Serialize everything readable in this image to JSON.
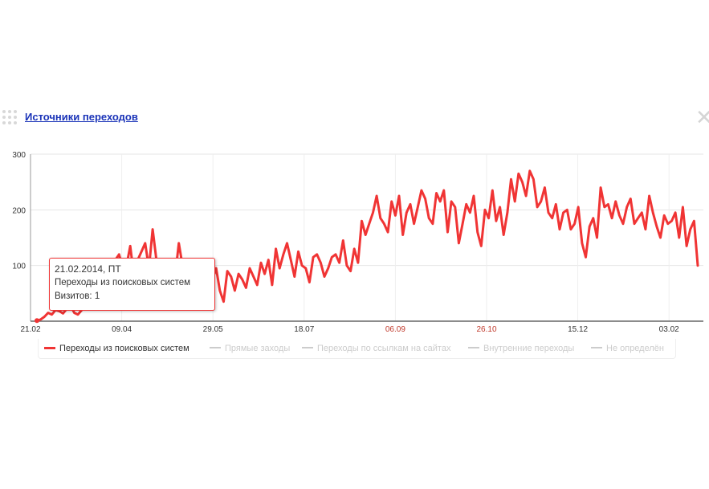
{
  "widget": {
    "title": "Источники переходов",
    "close_icon": "close-icon",
    "drag_icon": "drag-handle-icon"
  },
  "tooltip": {
    "date": "21.02.2014, ПТ",
    "series": "Переходы из поисковых систем",
    "visits": "Визитов: 1"
  },
  "legend": [
    {
      "label": "Переходы из поисковых систем",
      "active": true,
      "color": "#f03434"
    },
    {
      "label": "Прямые заходы",
      "active": false,
      "color": "#cccccc"
    },
    {
      "label": "Переходы по ссылкам на сайтах",
      "active": false,
      "color": "#cccccc"
    },
    {
      "label": "Внутренние переходы",
      "active": false,
      "color": "#cccccc"
    },
    {
      "label": "Не определён",
      "active": false,
      "color": "#cccccc"
    }
  ],
  "chart_data": {
    "type": "line",
    "title": "",
    "xlabel": "",
    "ylabel": "",
    "ylim": [
      0,
      300
    ],
    "yticks": [
      100,
      200,
      300
    ],
    "xticks": [
      {
        "label": "21.02",
        "color": "#333333"
      },
      {
        "label": "09.04",
        "color": "#333333"
      },
      {
        "label": "29.05",
        "color": "#333333"
      },
      {
        "label": "18.07",
        "color": "#333333"
      },
      {
        "label": "06.09",
        "color": "#c0392b"
      },
      {
        "label": "26.10",
        "color": "#c0392b"
      },
      {
        "label": "15.12",
        "color": "#333333"
      },
      {
        "label": "03.02",
        "color": "#333333"
      }
    ],
    "grid": true,
    "series": [
      {
        "name": "Переходы из поисковых систем",
        "color": "#f03434",
        "x_start": "21.02.2014",
        "step_days": 3,
        "values": [
          1,
          3,
          8,
          15,
          12,
          20,
          18,
          14,
          22,
          28,
          15,
          12,
          20,
          30,
          25,
          38,
          45,
          50,
          60,
          75,
          85,
          110,
          120,
          95,
          100,
          135,
          80,
          110,
          125,
          140,
          95,
          165,
          110,
          85,
          70,
          105,
          95,
          80,
          140,
          100,
          75,
          110,
          95,
          70,
          100,
          60,
          50,
          75,
          95,
          55,
          35,
          90,
          80,
          55,
          85,
          75,
          60,
          95,
          80,
          65,
          105,
          85,
          110,
          65,
          130,
          95,
          120,
          140,
          110,
          80,
          125,
          100,
          95,
          70,
          115,
          120,
          105,
          80,
          95,
          115,
          120,
          105,
          145,
          100,
          90,
          130,
          105,
          180,
          155,
          175,
          195,
          225,
          185,
          175,
          160,
          215,
          190,
          225,
          155,
          195,
          210,
          175,
          205,
          235,
          220,
          185,
          175,
          230,
          215,
          235,
          160,
          215,
          205,
          140,
          175,
          210,
          195,
          225,
          160,
          135,
          200,
          185,
          235,
          180,
          205,
          155,
          195,
          255,
          215,
          265,
          250,
          225,
          270,
          255,
          205,
          215,
          240,
          195,
          185,
          210,
          165,
          195,
          200,
          165,
          175,
          205,
          140,
          115,
          170,
          185,
          150,
          240,
          205,
          210,
          185,
          215,
          190,
          175,
          205,
          220,
          175,
          185,
          195,
          165,
          225,
          195,
          170,
          150,
          190,
          175,
          180,
          195,
          150,
          205,
          135,
          165,
          180,
          100
        ]
      }
    ]
  }
}
